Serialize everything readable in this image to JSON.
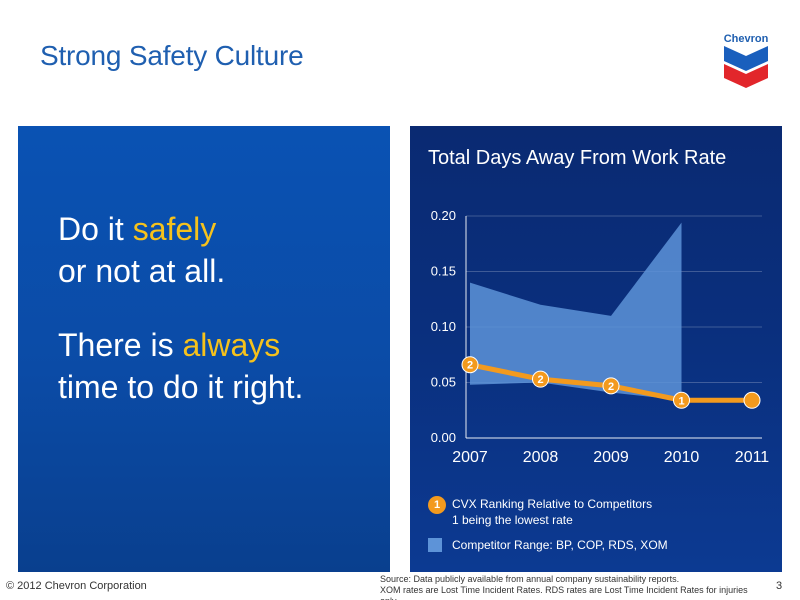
{
  "slide": {
    "title": "Strong Safety Culture",
    "logo_text": "Chevron",
    "page_number": "3",
    "copyright": "© 2012 Chevron Corporation",
    "source_line1": "Source: Data publicly available from annual company sustainability reports.",
    "source_line2": "XOM rates are Lost Time Incident Rates. RDS rates are Lost Time Incident Rates for injuries only."
  },
  "message": {
    "line1_pre": "Do it ",
    "line1_highlight": "safely",
    "line2": "or not at all.",
    "line3_pre": "There is ",
    "line3_highlight": "always",
    "line4": "time to do it right."
  },
  "legend": {
    "rank_badge": "1",
    "rank_line1": "CVX Ranking Relative to Competitors",
    "rank_line2": "1 being the lowest rate",
    "range_label": "Competitor Range: BP, COP, RDS, XOM"
  },
  "colors": {
    "background_left": "#0b4ba6",
    "background_right": "#0a2f7d",
    "highlight_yellow": "#f6c21c",
    "cvx_line": "#f39a1e",
    "competitor_range": "#5d93d8",
    "title_blue": "#1f5fb0"
  },
  "chart_data": {
    "type": "line",
    "title": "Total Days Away From Work Rate",
    "xlabel": "",
    "ylabel": "",
    "x": [
      "2007",
      "2008",
      "2009",
      "2010",
      "2011"
    ],
    "ylim": [
      0,
      0.2
    ],
    "yticks": [
      "0.00",
      "0.05",
      "0.10",
      "0.15",
      "0.20"
    ],
    "grid": true,
    "series": [
      {
        "name": "CVX Ranking Relative to Competitors",
        "values": [
          0.066,
          0.053,
          0.047,
          0.034,
          0.034
        ],
        "rank_labels": [
          "2",
          "2",
          "2",
          "1",
          ""
        ]
      }
    ],
    "range_band": {
      "name": "Competitor Range: BP, COP, RDS, XOM",
      "x": [
        "2007",
        "2008",
        "2009",
        "2010"
      ],
      "low": [
        0.048,
        0.05,
        0.041,
        0.034
      ],
      "high": [
        0.14,
        0.12,
        0.11,
        0.194
      ]
    }
  }
}
